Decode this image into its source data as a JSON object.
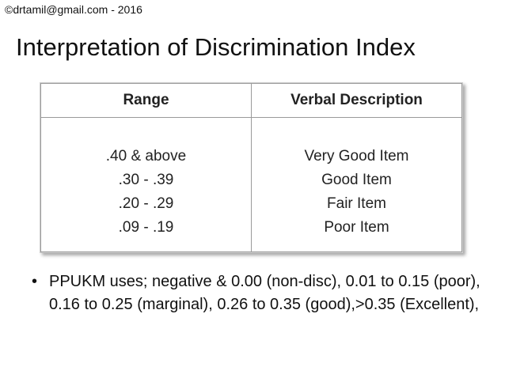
{
  "header": {
    "copyright": "©drtamil@gmail.com - 2016"
  },
  "slide": {
    "title": "Interpretation of Discrimination Index"
  },
  "table": {
    "headers": [
      "Range",
      "Verbal Description"
    ],
    "ranges": [
      ".40 & above",
      ".30 - .39",
      ".20 - .29",
      ".09 - .19"
    ],
    "descriptions": [
      "Very Good Item",
      "Good Item",
      "Fair Item",
      "Poor Item"
    ]
  },
  "bullets": [
    {
      "symbol": "•",
      "text": "PPUKM uses; negative & 0.00 (non-disc), 0.01 to 0.15 (poor), 0.16 to 0.25 (marginal), 0.26 to 0.35 (good),>0.35 (Excellent),"
    }
  ]
}
